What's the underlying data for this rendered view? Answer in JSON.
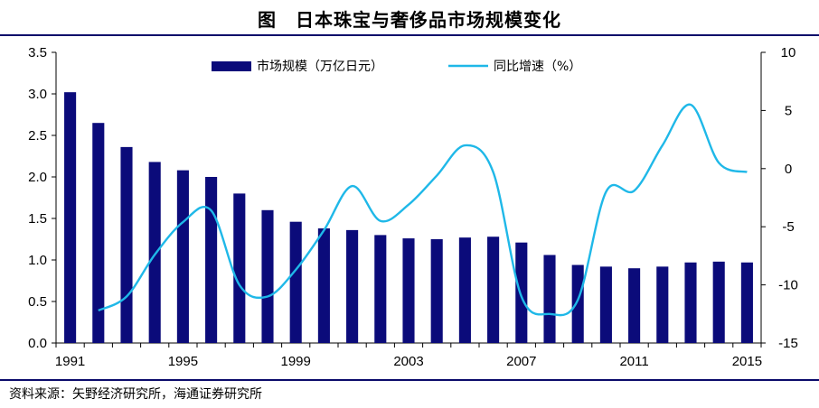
{
  "title": "图　日本珠宝与奢侈品市场规模变化",
  "source": "资料来源：矢野经济研究所，海通证券研究所",
  "chart_data": {
    "type": "bar+line",
    "title": "图　日本珠宝与奢侈品市场规模变化",
    "categories": [
      1991,
      1992,
      1993,
      1994,
      1995,
      1996,
      1997,
      1998,
      1999,
      2000,
      2001,
      2002,
      2003,
      2004,
      2005,
      2006,
      2007,
      2008,
      2009,
      2010,
      2011,
      2012,
      2013,
      2014,
      2015
    ],
    "x_tick_labels": [
      "1991",
      "1995",
      "1999",
      "2003",
      "2007",
      "2011",
      "2015"
    ],
    "left_axis": {
      "ylim": [
        0,
        3.5
      ],
      "ticks": [
        "0.0",
        "0.5",
        "1.0",
        "1.5",
        "2.0",
        "2.5",
        "3.0",
        "3.5"
      ]
    },
    "right_axis": {
      "ylim": [
        -15,
        10
      ],
      "ticks": [
        "-15",
        "-10",
        "-5",
        "0",
        "5",
        "10"
      ]
    },
    "series": [
      {
        "name": "市场规模（万亿日元）",
        "type": "bar",
        "axis": "left",
        "color": "#0b0b7a",
        "values": [
          3.02,
          2.65,
          2.36,
          2.18,
          2.08,
          2.0,
          1.8,
          1.6,
          1.46,
          1.38,
          1.36,
          1.3,
          1.26,
          1.25,
          1.27,
          1.28,
          1.21,
          1.06,
          0.94,
          0.92,
          0.9,
          0.92,
          0.97,
          0.98,
          0.97
        ]
      },
      {
        "name": "同比增速（%）",
        "type": "line",
        "axis": "right",
        "color": "#1fb8e8",
        "values": [
          null,
          -12.2,
          -11.0,
          -7.4,
          -4.6,
          -3.6,
          -10.0,
          -11.0,
          -8.7,
          -5.3,
          -1.5,
          -4.5,
          -3.1,
          -0.6,
          2.0,
          -0.3,
          -11.0,
          -12.5,
          -11.3,
          -2.0,
          -1.9,
          2.0,
          5.5,
          0.5,
          -0.3
        ]
      }
    ],
    "legend_placement": "top-center",
    "grid": false
  }
}
